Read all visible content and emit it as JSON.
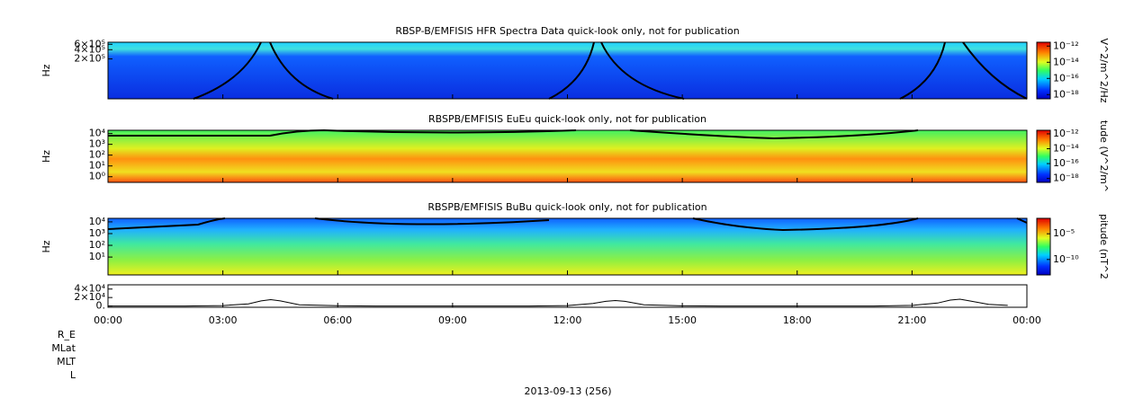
{
  "chart_data": [
    {
      "type": "spectrogram",
      "title": "RBSP-B/EMFISIS  HFR Spectra Data quick-look only, not for publication",
      "ylabel": "Hz",
      "log_y": true,
      "ylim": [
        10000,
        700000
      ],
      "yticks": [
        {
          "value": 600000,
          "label": "6×10⁵"
        },
        {
          "value": 400000,
          "label": "4×10⁵"
        },
        {
          "value": 200000,
          "label": "2×10⁵"
        }
      ],
      "colorbar_label": "V^2/m^2/Hz",
      "clim": [
        3e-19,
        3e-12
      ],
      "cticks": [
        {
          "value": 1e-12,
          "label": "10⁻¹²"
        },
        {
          "value": 1e-14,
          "label": "10⁻¹⁴"
        },
        {
          "value": 1e-16,
          "label": "10⁻¹⁶"
        },
        {
          "value": 1e-18,
          "label": "10⁻¹⁸"
        }
      ]
    },
    {
      "type": "spectrogram",
      "title": "RBSPB/EMFISIS  EuEu quick-look only, not for publication",
      "ylabel": "Hz",
      "log_y": true,
      "ylim": [
        0.3,
        20000
      ],
      "yticks": [
        {
          "value": 10000,
          "label": "10⁴"
        },
        {
          "value": 1000,
          "label": "10³"
        },
        {
          "value": 100,
          "label": "10²"
        },
        {
          "value": 10,
          "label": "10¹"
        },
        {
          "value": 1,
          "label": "10⁰"
        }
      ],
      "colorbar_label": "tude (V^2/m^",
      "clim": [
        3e-19,
        3e-12
      ],
      "cticks": [
        {
          "value": 1e-12,
          "label": "10⁻¹²"
        },
        {
          "value": 1e-14,
          "label": "10⁻¹⁴"
        },
        {
          "value": 1e-16,
          "label": "10⁻¹⁶"
        },
        {
          "value": 1e-18,
          "label": "10⁻¹⁸"
        }
      ]
    },
    {
      "type": "spectrogram",
      "title": "RBSPB/EMFISIS  BuBu quick-look only, not for publication",
      "ylabel": "Hz",
      "log_y": true,
      "ylim": [
        0.3,
        20000
      ],
      "yticks": [
        {
          "value": 10000,
          "label": "10⁴"
        },
        {
          "value": 1000,
          "label": "10³"
        },
        {
          "value": 100,
          "label": "10²"
        },
        {
          "value": 10,
          "label": "10¹"
        }
      ],
      "colorbar_label": "pitude (nT^2",
      "clim": [
        1e-13,
        0.01
      ],
      "cticks": [
        {
          "value": 1e-05,
          "label": "10⁻⁵"
        },
        {
          "value": 1e-10,
          "label": "10⁻¹⁰"
        }
      ]
    },
    {
      "type": "line",
      "ylim": [
        -3000,
        50000
      ],
      "yticks": [
        {
          "value": 40000,
          "label": "4×10⁴"
        },
        {
          "value": 20000,
          "label": "2×10⁴"
        },
        {
          "value": 0,
          "label": "0."
        }
      ],
      "x": [
        "00:00",
        "02:00",
        "03:00",
        "03:40",
        "04:00",
        "04:15",
        "04:30",
        "05:00",
        "06:00",
        "07:00",
        "11:00",
        "12:00",
        "12:40",
        "13:00",
        "13:15",
        "13:30",
        "14:00",
        "15:00",
        "16:00",
        "20:00",
        "21:00",
        "21:40",
        "22:00",
        "22:15",
        "22:30",
        "23:00",
        "23:30"
      ],
      "values": [
        0,
        0,
        1000,
        5000,
        12000,
        15000,
        12000,
        3000,
        500,
        0,
        0,
        1000,
        6000,
        11000,
        13000,
        11000,
        3000,
        300,
        0,
        0,
        1500,
        7000,
        14000,
        16000,
        12000,
        4000,
        1500
      ],
      "color": "#000000",
      "xticks": [
        "00:00",
        "03:00",
        "06:00",
        "09:00",
        "12:00",
        "15:00",
        "18:00",
        "21:00",
        "00:00"
      ]
    }
  ],
  "ephemeris_labels": [
    "R_E",
    "MLat",
    "MLT",
    "L"
  ],
  "date_label": "2013-09-13 (256)"
}
